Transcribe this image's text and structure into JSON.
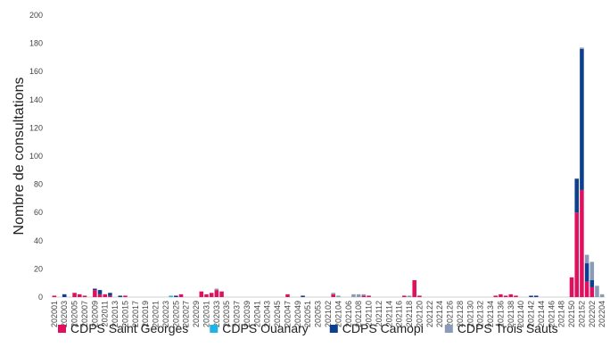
{
  "chart_data": {
    "type": "stacked_bar",
    "y_label": "Nombre de consultations",
    "categories": [
      "202001",
      null,
      "202003",
      null,
      "202005",
      null,
      "202007",
      null,
      "202009",
      null,
      "202011",
      null,
      "202013",
      null,
      "202015",
      null,
      "202017",
      null,
      "202019",
      null,
      "202021",
      null,
      "202023",
      null,
      "202025",
      null,
      "202027",
      null,
      "202029",
      null,
      "202031",
      null,
      "202033",
      null,
      "202035",
      null,
      "202037",
      null,
      "202039",
      null,
      "202041",
      null,
      "202043",
      null,
      "202045",
      null,
      "202047",
      null,
      "202049",
      null,
      "202051",
      null,
      "202053",
      null,
      "202102",
      null,
      "202104",
      null,
      "202106",
      null,
      "202108",
      null,
      "202110",
      null,
      "202112",
      null,
      "202114",
      null,
      "202116",
      null,
      "202118",
      null,
      "202120",
      null,
      "202122",
      null,
      "202124",
      null,
      "202126",
      null,
      "202128",
      null,
      "202130",
      null,
      "202132",
      null,
      "202134",
      null,
      "202136",
      null,
      "202138",
      null,
      "202140",
      null,
      "202142",
      null,
      "202144",
      null,
      "202146",
      null,
      "202148",
      null,
      "202150",
      null,
      "202152",
      null,
      "202202",
      null,
      "202204"
    ],
    "series": [
      {
        "name": "CDPS Saint Georges",
        "color": "#e0105f",
        "values": [
          1,
          0,
          0,
          0,
          3,
          2,
          1,
          0,
          5,
          2,
          2,
          1,
          0,
          0,
          1,
          0,
          0,
          0,
          0,
          0,
          0,
          0,
          0,
          0,
          0,
          2,
          0,
          0,
          0,
          4,
          2,
          3,
          5,
          4,
          0,
          0,
          0,
          0,
          0,
          0,
          0,
          0,
          0,
          0,
          0,
          0,
          2,
          0,
          0,
          0,
          0,
          0,
          0,
          0,
          0,
          2,
          0,
          0,
          0,
          0,
          0,
          1,
          1,
          0,
          0,
          0,
          0,
          0,
          0,
          1,
          0,
          12,
          1,
          0,
          0,
          0,
          0,
          0,
          0,
          0,
          0,
          0,
          0,
          0,
          0,
          0,
          0,
          1,
          2,
          1,
          2,
          1,
          0,
          0,
          0,
          0,
          0,
          0,
          0,
          0,
          0,
          0,
          14,
          60,
          76,
          11,
          7,
          0,
          0
        ]
      },
      {
        "name": "CDPS Ouanary",
        "color": "#1fb4e6",
        "values": [
          0,
          0,
          0,
          0,
          0,
          0,
          0,
          0,
          0,
          0,
          0,
          0,
          0,
          0,
          0,
          0,
          0,
          0,
          0,
          0,
          0,
          0,
          0,
          1,
          0,
          0,
          0,
          0,
          0,
          0,
          0,
          0,
          0,
          0,
          0,
          0,
          0,
          0,
          0,
          0,
          0,
          0,
          0,
          0,
          0,
          0,
          0,
          0,
          0,
          0,
          0,
          0,
          0,
          0,
          0,
          0,
          0,
          0,
          0,
          0,
          0,
          0,
          0,
          0,
          0,
          0,
          0,
          0,
          0,
          0,
          0,
          0,
          0,
          0,
          0,
          0,
          0,
          0,
          0,
          0,
          0,
          0,
          0,
          0,
          0,
          0,
          0,
          0,
          0,
          0,
          0,
          0,
          0,
          0,
          0,
          0,
          0,
          0,
          0,
          0,
          0,
          0,
          0,
          0,
          0,
          0,
          0,
          0,
          0
        ]
      },
      {
        "name": "CDPS Camopi",
        "color": "#0d3f8f",
        "values": [
          0,
          0,
          2,
          0,
          0,
          0,
          0,
          0,
          1,
          3,
          0,
          2,
          0,
          1,
          0,
          0,
          0,
          0,
          0,
          0,
          0,
          0,
          0,
          0,
          1,
          0,
          0,
          0,
          0,
          0,
          0,
          0,
          0,
          0,
          0,
          0,
          0,
          0,
          0,
          0,
          0,
          0,
          0,
          0,
          0,
          0,
          0,
          0,
          0,
          1,
          0,
          0,
          0,
          0,
          0,
          0,
          0,
          0,
          0,
          0,
          0,
          0,
          0,
          0,
          0,
          0,
          0,
          0,
          0,
          0,
          0,
          0,
          0,
          0,
          0,
          0,
          0,
          0,
          0,
          0,
          0,
          0,
          0,
          0,
          0,
          0,
          0,
          0,
          0,
          0,
          0,
          0,
          0,
          0,
          1,
          1,
          0,
          0,
          0,
          0,
          0,
          0,
          0,
          24,
          100,
          13,
          5,
          0,
          0
        ]
      },
      {
        "name": "CDPS Trois Sauts",
        "color": "#8a9bb8",
        "values": [
          0,
          0,
          0,
          0,
          0,
          0,
          0,
          0,
          0,
          0,
          0,
          0,
          0,
          0,
          0,
          0,
          0,
          0,
          0,
          0,
          0,
          0,
          0,
          0,
          0,
          0,
          0,
          0,
          0,
          0,
          0,
          0,
          1,
          0,
          0,
          0,
          0,
          0,
          0,
          0,
          0,
          0,
          0,
          0,
          0,
          0,
          0,
          0,
          0,
          0,
          0,
          0,
          0,
          0,
          0,
          1,
          1,
          0,
          0,
          2,
          2,
          1,
          0,
          0,
          0,
          0,
          0,
          0,
          0,
          0,
          1,
          0,
          0,
          0,
          0,
          0,
          0,
          0,
          0,
          0,
          0,
          0,
          0,
          0,
          0,
          0,
          0,
          0,
          0,
          0,
          0,
          0,
          0,
          0,
          0,
          0,
          0,
          0,
          0,
          0,
          0,
          0,
          0,
          0,
          1,
          6,
          13,
          8,
          2
        ]
      }
    ],
    "ylim": [
      0,
      200
    ],
    "yticks": [
      0,
      20,
      40,
      60,
      80,
      100,
      120,
      140,
      160,
      180,
      200
    ],
    "legend": "bottom"
  }
}
